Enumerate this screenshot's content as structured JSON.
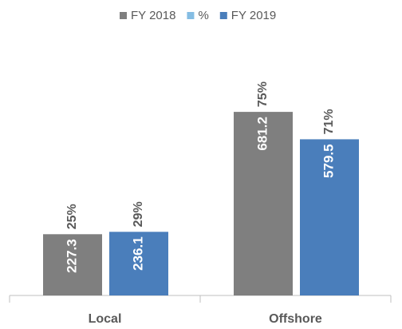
{
  "chart_data": {
    "type": "bar",
    "categories": [
      "Local",
      "Offshore"
    ],
    "series": [
      {
        "name": "FY 2018",
        "color": "#7f7f7f",
        "values": [
          227.3,
          681.2
        ],
        "shares": [
          25,
          75
        ],
        "share_labels": [
          "25%",
          "75%"
        ]
      },
      {
        "name": "%",
        "color": "#85bde3",
        "values": [
          null,
          null
        ]
      },
      {
        "name": "FY 2019",
        "color": "#4a7ebb",
        "values": [
          236.1,
          579.5
        ],
        "shares": [
          29,
          71
        ],
        "share_labels": [
          "29%",
          "71%"
        ]
      }
    ],
    "ylim": [
      0,
      800
    ],
    "legend": "top"
  }
}
